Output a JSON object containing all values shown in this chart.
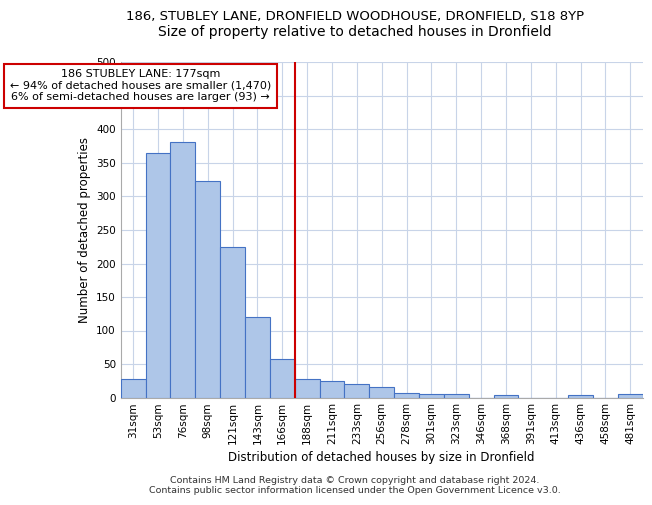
{
  "title_line1": "186, STUBLEY LANE, DRONFIELD WOODHOUSE, DRONFIELD, S18 8YP",
  "title_line2": "Size of property relative to detached houses in Dronfield",
  "xlabel": "Distribution of detached houses by size in Dronfield",
  "ylabel": "Number of detached properties",
  "footer_line1": "Contains HM Land Registry data © Crown copyright and database right 2024.",
  "footer_line2": "Contains public sector information licensed under the Open Government Licence v3.0.",
  "categories": [
    "31sqm",
    "53sqm",
    "76sqm",
    "98sqm",
    "121sqm",
    "143sqm",
    "166sqm",
    "188sqm",
    "211sqm",
    "233sqm",
    "256sqm",
    "278sqm",
    "301sqm",
    "323sqm",
    "346sqm",
    "368sqm",
    "391sqm",
    "413sqm",
    "436sqm",
    "458sqm",
    "481sqm"
  ],
  "values": [
    28,
    365,
    382,
    323,
    225,
    120,
    58,
    27,
    25,
    20,
    15,
    7,
    5,
    5,
    0,
    4,
    0,
    0,
    4,
    0,
    5
  ],
  "bar_color": "#aec6e8",
  "bar_edge_color": "#4472c4",
  "vline_x_index": 7,
  "vline_color": "#cc0000",
  "annotation_line1": "186 STUBLEY LANE: 177sqm",
  "annotation_line2": "← 94% of detached houses are smaller (1,470)",
  "annotation_line3": "6% of semi-detached houses are larger (93) →",
  "annotation_box_color": "#cc0000",
  "ylim": [
    0,
    500
  ],
  "yticks": [
    0,
    50,
    100,
    150,
    200,
    250,
    300,
    350,
    400,
    450,
    500
  ],
  "grid_color": "#c8d4e8",
  "background_color": "#ffffff",
  "title1_fontsize": 9.5,
  "title2_fontsize": 10,
  "axis_label_fontsize": 8.5,
  "tick_fontsize": 7.5,
  "footer_fontsize": 6.8,
  "annotation_fontsize": 8
}
